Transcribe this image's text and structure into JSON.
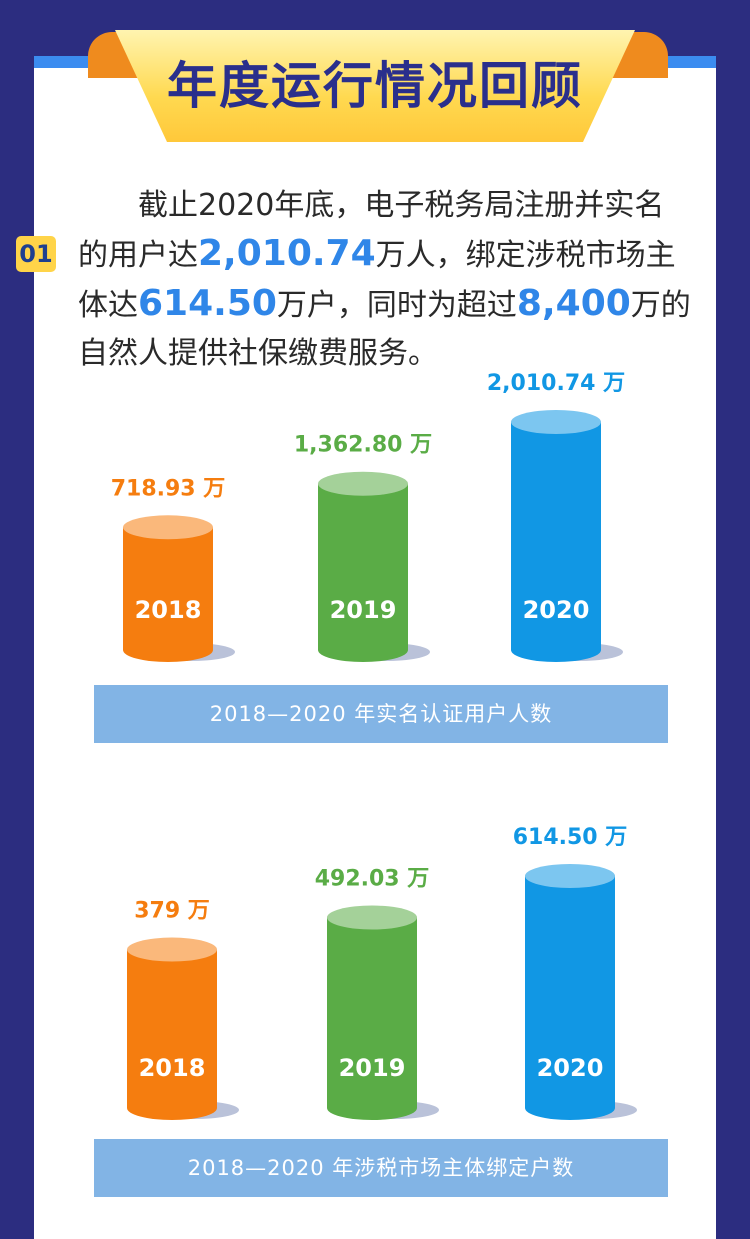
{
  "header": {
    "title": "年度运行情况回顾"
  },
  "section": {
    "number": "01",
    "text_prefix": "截止2020年底，电子税务局注册并实名的用户达",
    "users_value": "2,010.74",
    "text_mid1": "万人，绑定涉税市场主体达",
    "entities_value": "614.50",
    "text_mid2": "万户，同时为超过",
    "persons_value": "8,400",
    "text_suffix": "万的自然人提供社保缴费服务。"
  },
  "chart_data": [
    {
      "type": "bar",
      "categories": [
        "2018",
        "2019",
        "2020"
      ],
      "values": [
        718.93,
        1362.8,
        2010.74
      ],
      "value_labels": [
        "718.93 万",
        "1,362.80 万",
        "2,010.74 万"
      ],
      "colors": [
        "#f57d0f",
        "#5aac46",
        "#1197e4"
      ],
      "title": "2018—2020 年实名认证用户人数"
    },
    {
      "type": "bar",
      "categories": [
        "2018",
        "2019",
        "2020"
      ],
      "values": [
        379,
        492.03,
        614.5
      ],
      "value_labels": [
        "379 万",
        "492.03 万",
        "614.50 万"
      ],
      "colors": [
        "#f57d0f",
        "#5aac46",
        "#1197e4"
      ],
      "title": "2018—2020 年涉税市场主体绑定户数"
    }
  ]
}
